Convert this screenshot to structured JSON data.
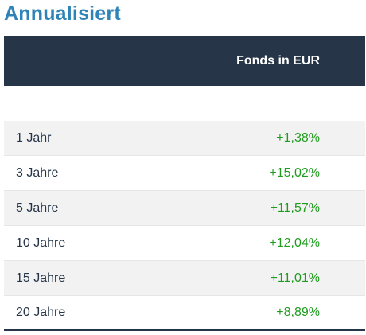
{
  "section_title": "Annualisiert",
  "table": {
    "column_header": "Fonds in EUR",
    "rows": [
      {
        "period": "1 Jahr",
        "value": "+1,38%"
      },
      {
        "period": "3 Jahre",
        "value": "+15,02%"
      },
      {
        "period": "5 Jahre",
        "value": "+11,57%"
      },
      {
        "period": "10 Jahre",
        "value": "+12,04%"
      },
      {
        "period": "15 Jahre",
        "value": "+11,01%"
      },
      {
        "period": "20 Jahre",
        "value": "+8,89%"
      }
    ]
  },
  "colors": {
    "title": "#2f84b7",
    "header_bg": "#263548",
    "positive_value": "#1f9c1f",
    "row_stripe": "#f2f2f2"
  }
}
